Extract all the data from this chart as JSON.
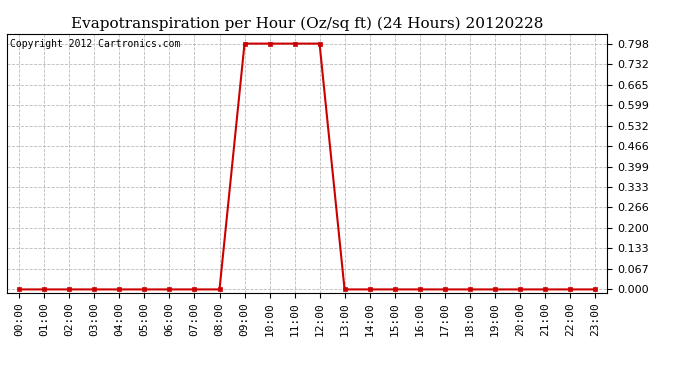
{
  "title": "Evapotranspiration per Hour (Oz/sq ft) (24 Hours) 20120228",
  "copyright_text": "Copyright 2012 Cartronics.com",
  "hours": [
    "00:00",
    "01:00",
    "02:00",
    "03:00",
    "04:00",
    "05:00",
    "06:00",
    "07:00",
    "08:00",
    "09:00",
    "10:00",
    "11:00",
    "12:00",
    "13:00",
    "14:00",
    "15:00",
    "16:00",
    "17:00",
    "18:00",
    "19:00",
    "20:00",
    "21:00",
    "22:00",
    "23:00"
  ],
  "values": [
    0.0,
    0.0,
    0.0,
    0.0,
    0.0,
    0.0,
    0.0,
    0.0,
    0.0,
    0.798,
    0.798,
    0.798,
    0.798,
    0.0,
    0.0,
    0.0,
    0.0,
    0.0,
    0.0,
    0.0,
    0.0,
    0.0,
    0.0,
    0.0
  ],
  "yticks": [
    0.0,
    0.067,
    0.133,
    0.2,
    0.266,
    0.333,
    0.399,
    0.466,
    0.532,
    0.599,
    0.665,
    0.732,
    0.798
  ],
  "ylim_min": -0.01,
  "ylim_max": 0.83,
  "line_color": "#cc0000",
  "marker_color": "#cc0000",
  "bg_color": "#ffffff",
  "plot_bg_color": "#ffffff",
  "grid_color": "#bbbbbb",
  "title_fontsize": 11,
  "copyright_fontsize": 7,
  "tick_fontsize": 8,
  "fig_width": 6.9,
  "fig_height": 3.75,
  "dpi": 100
}
